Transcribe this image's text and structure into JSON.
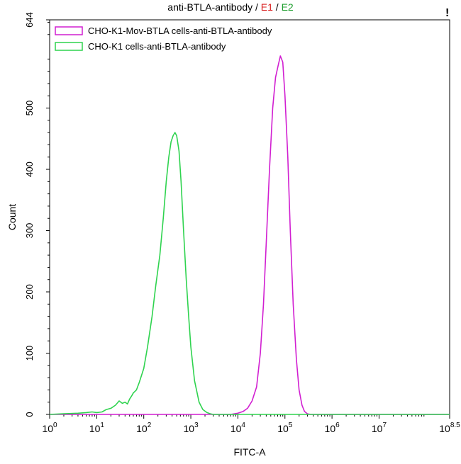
{
  "chart_data": {
    "type": "line",
    "title_parts": [
      {
        "text": "anti-BTLA-antibody",
        "color": "#000000"
      },
      {
        "text": " / ",
        "color": "#000000"
      },
      {
        "text": "E1",
        "color": "#d81b1b"
      },
      {
        "text": " / ",
        "color": "#000000"
      },
      {
        "text": "E2",
        "color": "#1e9e2e"
      }
    ],
    "alert_mark": "!",
    "xlabel": "FITC-A",
    "ylabel": "Count",
    "x_scale": "log10",
    "xlim": [
      1,
      316227766
    ],
    "ylim": [
      0,
      644
    ],
    "x_ticks": [
      {
        "base": "10",
        "exp": "0",
        "value": 1
      },
      {
        "base": "10",
        "exp": "1",
        "value": 10
      },
      {
        "base": "10",
        "exp": "2",
        "value": 100
      },
      {
        "base": "10",
        "exp": "3",
        "value": 1000
      },
      {
        "base": "10",
        "exp": "4",
        "value": 10000
      },
      {
        "base": "10",
        "exp": "5",
        "value": 100000
      },
      {
        "base": "10",
        "exp": "6",
        "value": 1000000
      },
      {
        "base": "10",
        "exp": "7",
        "value": 10000000
      },
      {
        "base": "10",
        "exp": "8.5",
        "value": 316227766
      }
    ],
    "y_ticks": [
      0,
      100,
      200,
      300,
      400,
      500,
      644
    ],
    "grid": false,
    "legend_position": "top-left",
    "series": [
      {
        "name": "CHO-K1-Mov-BTLA cells-anti-BTLA-antibody",
        "color": "#d11fd1",
        "x": [
          1,
          3000,
          7000,
          10000,
          13000,
          16000,
          20000,
          25000,
          30000,
          35000,
          40000,
          47000,
          55000,
          63000,
          72000,
          80000,
          90000,
          100000,
          115000,
          130000,
          150000,
          175000,
          200000,
          230000,
          260000,
          300000,
          350000,
          316227766
        ],
        "y": [
          0,
          0,
          0,
          2,
          5,
          10,
          22,
          45,
          100,
          180,
          280,
          400,
          500,
          550,
          570,
          585,
          575,
          520,
          420,
          300,
          180,
          90,
          40,
          15,
          5,
          1,
          0,
          0
        ]
      },
      {
        "name": "CHO-K1 cells-anti-BTLA-antibody",
        "color": "#2fd34f",
        "x": [
          1,
          2,
          4,
          6,
          8,
          10,
          13,
          16,
          20,
          25,
          30,
          35,
          40,
          45,
          50,
          55,
          60,
          70,
          80,
          100,
          120,
          150,
          180,
          220,
          260,
          300,
          340,
          380,
          420,
          460,
          500,
          560,
          620,
          700,
          800,
          900,
          1000,
          1200,
          1500,
          1800,
          2200,
          2600,
          3000,
          4000,
          316227766
        ],
        "y": [
          0,
          1,
          2,
          3,
          4,
          3,
          4,
          8,
          10,
          15,
          22,
          18,
          20,
          17,
          25,
          30,
          35,
          40,
          52,
          75,
          110,
          160,
          210,
          260,
          320,
          380,
          420,
          445,
          455,
          460,
          455,
          430,
          380,
          300,
          220,
          160,
          110,
          55,
          20,
          8,
          3,
          1,
          0,
          0,
          0
        ]
      }
    ]
  }
}
